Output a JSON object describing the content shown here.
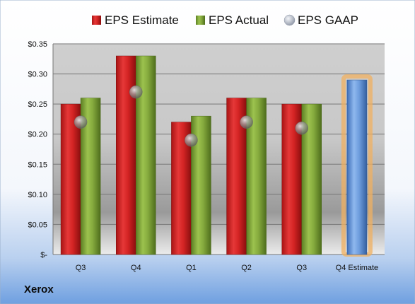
{
  "company": "Xerox",
  "colors": {
    "estimate": "#d42a2a",
    "actual": "#7fa33c",
    "gaap": "#b8bcc4",
    "forecast": "#6f9ede",
    "forecast_glow": "#f0b060"
  },
  "chart_data": {
    "type": "bar",
    "categories": [
      "Q3",
      "Q4",
      "Q1",
      "Q2",
      "Q3",
      "Q4 Estimate"
    ],
    "series": [
      {
        "name": "EPS Estimate",
        "values": [
          0.25,
          0.33,
          0.22,
          0.26,
          0.25,
          null
        ]
      },
      {
        "name": "EPS Actual",
        "values": [
          0.26,
          0.33,
          0.23,
          0.26,
          0.25,
          0.29
        ]
      },
      {
        "name": "EPS GAAP",
        "values": [
          0.22,
          0.27,
          0.19,
          0.22,
          0.21,
          null
        ]
      }
    ],
    "forecast_category": "Q4 Estimate",
    "ylim": [
      0,
      0.35
    ],
    "yticks": [
      0,
      0.05,
      0.1,
      0.15,
      0.2,
      0.25,
      0.3,
      0.35
    ],
    "ytick_labels": [
      "$-",
      "$0.05",
      "$0.10",
      "$0.15",
      "$0.20",
      "$0.25",
      "$0.30",
      "$0.35"
    ],
    "legend_position": "top",
    "grid": true
  }
}
